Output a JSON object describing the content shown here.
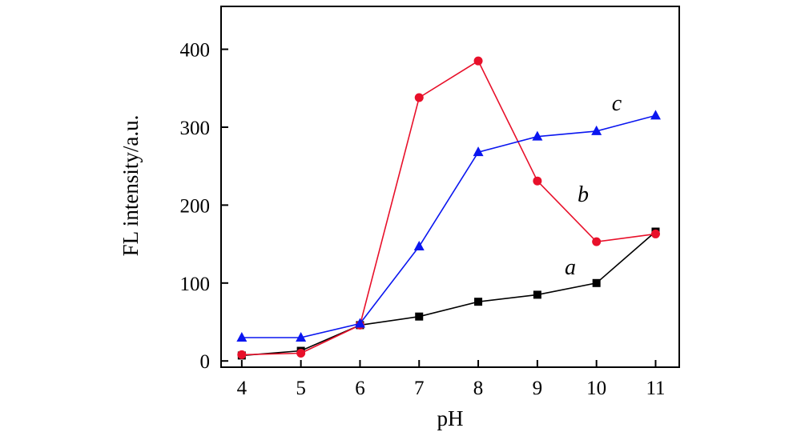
{
  "chart_data": {
    "type": "line",
    "title": "",
    "xlabel": "pH",
    "ylabel": "FL intensity/a.u.",
    "x": [
      4,
      5,
      6,
      7,
      8,
      9,
      10,
      11
    ],
    "xlim": [
      3.65,
      11.4
    ],
    "ylim": [
      -8,
      455
    ],
    "xticks": [
      "4",
      "5",
      "6",
      "7",
      "8",
      "9",
      "10",
      "11"
    ],
    "yticks": [
      0,
      100,
      200,
      300,
      400
    ],
    "ytick_labels": [
      "0",
      "100",
      "200",
      "300",
      "400"
    ],
    "grid": false,
    "legend": "none",
    "series": [
      {
        "name": "a",
        "label": "a",
        "color": "#000000",
        "marker": "square",
        "values": [
          7,
          13,
          46,
          57,
          76,
          85,
          100,
          166
        ]
      },
      {
        "name": "b",
        "label": "b",
        "color": "#e8102a",
        "marker": "circle",
        "values": [
          8,
          10,
          46,
          338,
          385,
          231,
          153,
          163
        ]
      },
      {
        "name": "c",
        "label": "c",
        "color": "#0a16f0",
        "marker": "triangle",
        "values": [
          30,
          30,
          48,
          147,
          268,
          288,
          295,
          315
        ]
      }
    ]
  }
}
